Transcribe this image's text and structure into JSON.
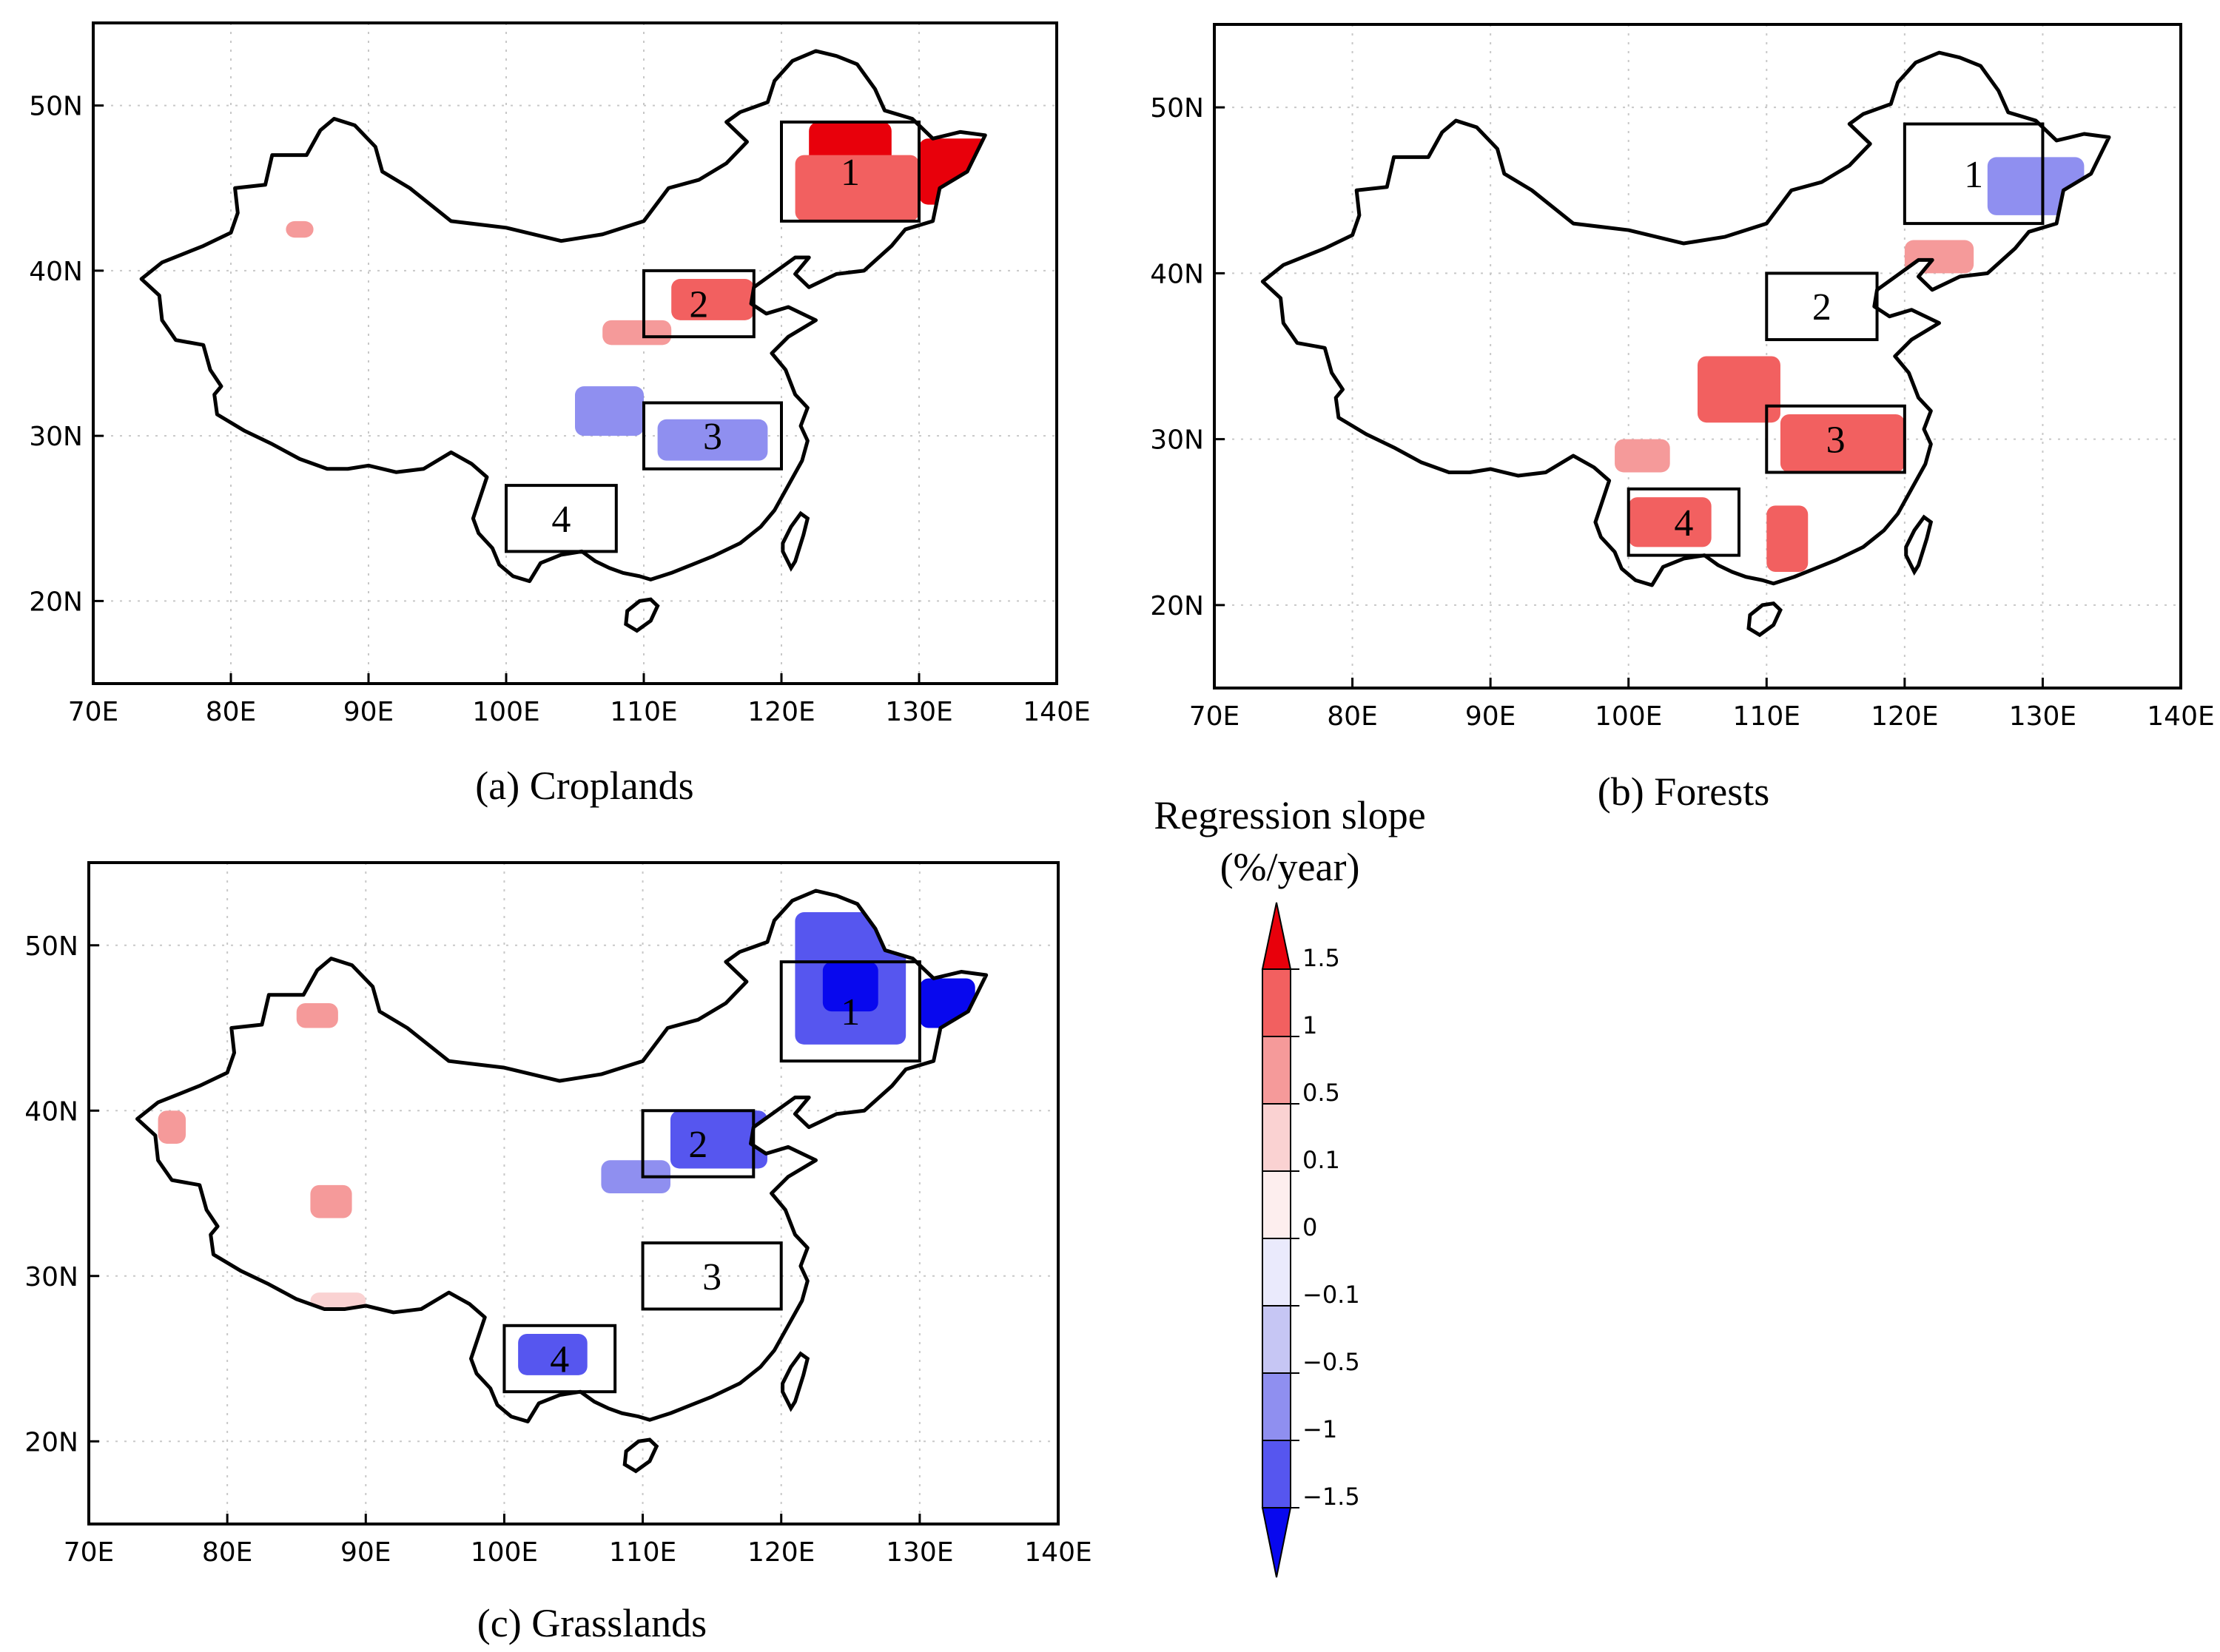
{
  "panels": [
    {
      "id": "croplands",
      "caption": "(a) Croplands",
      "x_ticks": [
        "70E",
        "80E",
        "90E",
        "100E",
        "110E",
        "120E",
        "130E",
        "140E"
      ],
      "y_ticks": [
        "50N",
        "40N",
        "30N",
        "20N"
      ],
      "boxes": [
        {
          "label": "1",
          "lon": [
            120,
            130
          ],
          "lat": [
            43,
            49
          ]
        },
        {
          "label": "2",
          "lon": [
            110,
            118
          ],
          "lat": [
            36,
            40
          ]
        },
        {
          "label": "3",
          "lon": [
            110,
            120
          ],
          "lat": [
            28,
            32
          ]
        },
        {
          "label": "4",
          "lon": [
            100,
            108
          ],
          "lat": [
            23,
            27
          ]
        }
      ],
      "patches": [
        {
          "lon": [
            122,
            128
          ],
          "lat": [
            43.5,
            49
          ],
          "level": 1.5
        },
        {
          "lon": [
            121,
            130
          ],
          "lat": [
            43,
            47
          ],
          "level": 1
        },
        {
          "lon": [
            130,
            135
          ],
          "lat": [
            44,
            48
          ],
          "level": 1.5
        },
        {
          "lon": [
            112,
            118
          ],
          "lat": [
            37,
            39.5
          ],
          "level": 1
        },
        {
          "lon": [
            107,
            112
          ],
          "lat": [
            35.5,
            37
          ],
          "level": 0.5
        },
        {
          "lon": [
            105,
            110
          ],
          "lat": [
            30,
            33
          ],
          "level": -0.5
        },
        {
          "lon": [
            111,
            119
          ],
          "lat": [
            28.5,
            31
          ],
          "level": -0.5
        },
        {
          "lon": [
            84,
            86
          ],
          "lat": [
            42,
            43
          ],
          "level": 0.5
        }
      ]
    },
    {
      "id": "forests",
      "caption": "(b) Forests",
      "x_ticks": [
        "70E",
        "80E",
        "90E",
        "100E",
        "110E",
        "120E",
        "130E",
        "140E"
      ],
      "y_ticks": [
        "50N",
        "40N",
        "30N",
        "20N"
      ],
      "boxes": [
        {
          "label": "1",
          "lon": [
            120,
            130
          ],
          "lat": [
            43,
            49
          ]
        },
        {
          "label": "2",
          "lon": [
            110,
            118
          ],
          "lat": [
            36,
            40
          ]
        },
        {
          "label": "3",
          "lon": [
            110,
            120
          ],
          "lat": [
            28,
            32
          ]
        },
        {
          "label": "4",
          "lon": [
            100,
            108
          ],
          "lat": [
            23,
            27
          ]
        }
      ],
      "patches": [
        {
          "lon": [
            126,
            133
          ],
          "lat": [
            43.5,
            47
          ],
          "level": -0.5
        },
        {
          "lon": [
            120,
            125
          ],
          "lat": [
            40,
            42
          ],
          "level": 0.5
        },
        {
          "lon": [
            105,
            111
          ],
          "lat": [
            31,
            35
          ],
          "level": 1
        },
        {
          "lon": [
            111,
            120
          ],
          "lat": [
            28,
            31.5
          ],
          "level": 1
        },
        {
          "lon": [
            110,
            113
          ],
          "lat": [
            22,
            26
          ],
          "level": 1
        },
        {
          "lon": [
            100,
            106
          ],
          "lat": [
            23.5,
            26.5
          ],
          "level": 1
        },
        {
          "lon": [
            99,
            103
          ],
          "lat": [
            28,
            30
          ],
          "level": 0.5
        }
      ]
    },
    {
      "id": "grasslands",
      "caption": "(c) Grasslands",
      "x_ticks": [
        "70E",
        "80E",
        "90E",
        "100E",
        "110E",
        "120E",
        "130E",
        "140E"
      ],
      "y_ticks": [
        "50N",
        "40N",
        "30N",
        "20N"
      ],
      "boxes": [
        {
          "label": "1",
          "lon": [
            120,
            130
          ],
          "lat": [
            43,
            49
          ]
        },
        {
          "label": "2",
          "lon": [
            110,
            118
          ],
          "lat": [
            36,
            40
          ]
        },
        {
          "label": "3",
          "lon": [
            110,
            120
          ],
          "lat": [
            28,
            32
          ]
        },
        {
          "label": "4",
          "lon": [
            100,
            108
          ],
          "lat": [
            23,
            27
          ]
        }
      ],
      "patches": [
        {
          "lon": [
            121,
            129
          ],
          "lat": [
            44,
            52
          ],
          "level": -1
        },
        {
          "lon": [
            123,
            127
          ],
          "lat": [
            46,
            49
          ],
          "level": -1.5
        },
        {
          "lon": [
            130,
            134
          ],
          "lat": [
            45,
            48
          ],
          "level": -1.5
        },
        {
          "lon": [
            112,
            119
          ],
          "lat": [
            36.5,
            40
          ],
          "level": -1
        },
        {
          "lon": [
            107,
            112
          ],
          "lat": [
            35,
            37
          ],
          "level": -0.5
        },
        {
          "lon": [
            101,
            106
          ],
          "lat": [
            24,
            26.5
          ],
          "level": -1
        },
        {
          "lon": [
            85,
            88
          ],
          "lat": [
            45,
            46.5
          ],
          "level": 0.5
        },
        {
          "lon": [
            86,
            89
          ],
          "lat": [
            33.5,
            35.5
          ],
          "level": 0.5
        },
        {
          "lon": [
            75,
            77
          ],
          "lat": [
            38,
            40
          ],
          "level": 0.5
        },
        {
          "lon": [
            86,
            90
          ],
          "lat": [
            28,
            29
          ],
          "level": 0.1
        }
      ]
    }
  ],
  "colorbar": {
    "title_line1": "Regression slope",
    "title_line2": "(%/year)",
    "labels": [
      "1.5",
      "1",
      "0.5",
      "0.1",
      "0",
      "−0.1",
      "−0.5",
      "−1",
      "−1.5"
    ],
    "colors": [
      "#e8000b",
      "#f26060",
      "#f59a9a",
      "#fad2d2",
      "#fdeeee",
      "#eaeafc",
      "#c6c6f4",
      "#8f8ff0",
      "#5656ef",
      "#0808ee"
    ]
  }
}
